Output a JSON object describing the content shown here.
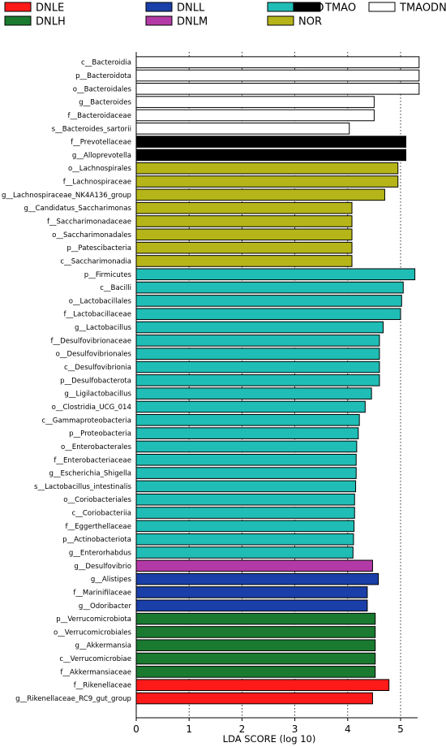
{
  "chart_data": {
    "type": "bar",
    "orientation": "horizontal",
    "title": "",
    "xlabel": "LDA SCORE (log 10)",
    "ylabel": "",
    "xlim": [
      0,
      5.4
    ],
    "xticks": [
      0,
      1,
      2,
      3,
      4,
      5
    ],
    "grid": "vertical dotted lines at x ticks 1-5",
    "legend_placement": "top",
    "groups": [
      {
        "name": "DNLE",
        "color": "#ff1a1a"
      },
      {
        "name": "DNLH",
        "color": "#1a7a30"
      },
      {
        "name": "DNLL",
        "color": "#1a3fa8"
      },
      {
        "name": "DNLM",
        "color": "#b33aa6"
      },
      {
        "name": "MOD",
        "color": "#1fbdb5"
      },
      {
        "name": "NOR",
        "color": "#b5b519"
      },
      {
        "name": "TMAO",
        "color": "#000000"
      },
      {
        "name": "TMAODNL",
        "color": "#ffffff"
      }
    ],
    "bars": [
      {
        "label": "c__Bacteroidia",
        "value": 5.35,
        "group": "TMAODNL"
      },
      {
        "label": "p__Bacteroidota",
        "value": 5.35,
        "group": "TMAODNL"
      },
      {
        "label": "o__Bacteroidales",
        "value": 5.35,
        "group": "TMAODNL"
      },
      {
        "label": "g__Bacteroides",
        "value": 4.5,
        "group": "TMAODNL"
      },
      {
        "label": "f__Bacteroidaceae",
        "value": 4.5,
        "group": "TMAODNL"
      },
      {
        "label": "s__Bacteroides_sartorii",
        "value": 4.03,
        "group": "TMAODNL"
      },
      {
        "label": "f__Prevotellaceae",
        "value": 5.1,
        "group": "TMAO"
      },
      {
        "label": "g__Alloprevotella",
        "value": 5.1,
        "group": "TMAO"
      },
      {
        "label": "o__Lachnospirales",
        "value": 4.95,
        "group": "NOR"
      },
      {
        "label": "f__Lachnospiraceae",
        "value": 4.95,
        "group": "NOR"
      },
      {
        "label": "g__Lachnospiraceae_NK4A136_group",
        "value": 4.7,
        "group": "NOR"
      },
      {
        "label": "g__Candidatus_Saccharimonas",
        "value": 4.08,
        "group": "NOR"
      },
      {
        "label": "f__Saccharimonadaceae",
        "value": 4.08,
        "group": "NOR"
      },
      {
        "label": "o__Saccharimonadales",
        "value": 4.08,
        "group": "NOR"
      },
      {
        "label": "p__Patescibacteria",
        "value": 4.08,
        "group": "NOR"
      },
      {
        "label": "c__Saccharimonadia",
        "value": 4.08,
        "group": "NOR"
      },
      {
        "label": "p__Firmicutes",
        "value": 5.27,
        "group": "MOD"
      },
      {
        "label": "c__Bacilli",
        "value": 5.05,
        "group": "MOD"
      },
      {
        "label": "o__Lactobacillales",
        "value": 5.02,
        "group": "MOD"
      },
      {
        "label": "f__Lactobacillaceae",
        "value": 5.0,
        "group": "MOD"
      },
      {
        "label": "g__Lactobacillus",
        "value": 4.67,
        "group": "MOD"
      },
      {
        "label": "f__Desulfovibrionaceae",
        "value": 4.6,
        "group": "MOD"
      },
      {
        "label": "o__Desulfovibrionales",
        "value": 4.6,
        "group": "MOD"
      },
      {
        "label": "c__Desulfovibrionia",
        "value": 4.6,
        "group": "MOD"
      },
      {
        "label": "p__Desulfobacterota",
        "value": 4.6,
        "group": "MOD"
      },
      {
        "label": "g__Ligilactobacillus",
        "value": 4.45,
        "group": "MOD"
      },
      {
        "label": "o__Clostridia_UCG_014",
        "value": 4.33,
        "group": "MOD"
      },
      {
        "label": "c__Gammaproteobacteria",
        "value": 4.22,
        "group": "MOD"
      },
      {
        "label": "p__Proteobacteria",
        "value": 4.2,
        "group": "MOD"
      },
      {
        "label": "o__Enterobacterales",
        "value": 4.17,
        "group": "MOD"
      },
      {
        "label": "f__Enterobacteriaceae",
        "value": 4.16,
        "group": "MOD"
      },
      {
        "label": "g__Escherichia_Shigella",
        "value": 4.16,
        "group": "MOD"
      },
      {
        "label": "s__Lactobacillus_intestinalis",
        "value": 4.15,
        "group": "MOD"
      },
      {
        "label": "o__Coriobacteriales",
        "value": 4.13,
        "group": "MOD"
      },
      {
        "label": "c__Coriobacteriia",
        "value": 4.13,
        "group": "MOD"
      },
      {
        "label": "f__Eggerthellaceae",
        "value": 4.12,
        "group": "MOD"
      },
      {
        "label": "p__Actinobacteriota",
        "value": 4.11,
        "group": "MOD"
      },
      {
        "label": "g__Enterorhabdus",
        "value": 4.1,
        "group": "MOD"
      },
      {
        "label": "g__Desulfovibrio",
        "value": 4.47,
        "group": "DNLM"
      },
      {
        "label": "g__Alistipes",
        "value": 4.58,
        "group": "DNLL"
      },
      {
        "label": "f__Marinifilaceae",
        "value": 4.37,
        "group": "DNLL"
      },
      {
        "label": "g__Odoribacter",
        "value": 4.37,
        "group": "DNLL"
      },
      {
        "label": "p__Verrucomicrobiota",
        "value": 4.52,
        "group": "DNLH"
      },
      {
        "label": "o__Verrucomicrobiales",
        "value": 4.52,
        "group": "DNLH"
      },
      {
        "label": "g__Akkermansia",
        "value": 4.52,
        "group": "DNLH"
      },
      {
        "label": "c__Verrucomicrobiae",
        "value": 4.52,
        "group": "DNLH"
      },
      {
        "label": "f__Akkermansiaceae",
        "value": 4.52,
        "group": "DNLH"
      },
      {
        "label": "f__Rikenellaceae",
        "value": 4.78,
        "group": "DNLE"
      },
      {
        "label": "g__Rikenellaceae_RC9_gut_group",
        "value": 4.47,
        "group": "DNLE"
      }
    ]
  }
}
